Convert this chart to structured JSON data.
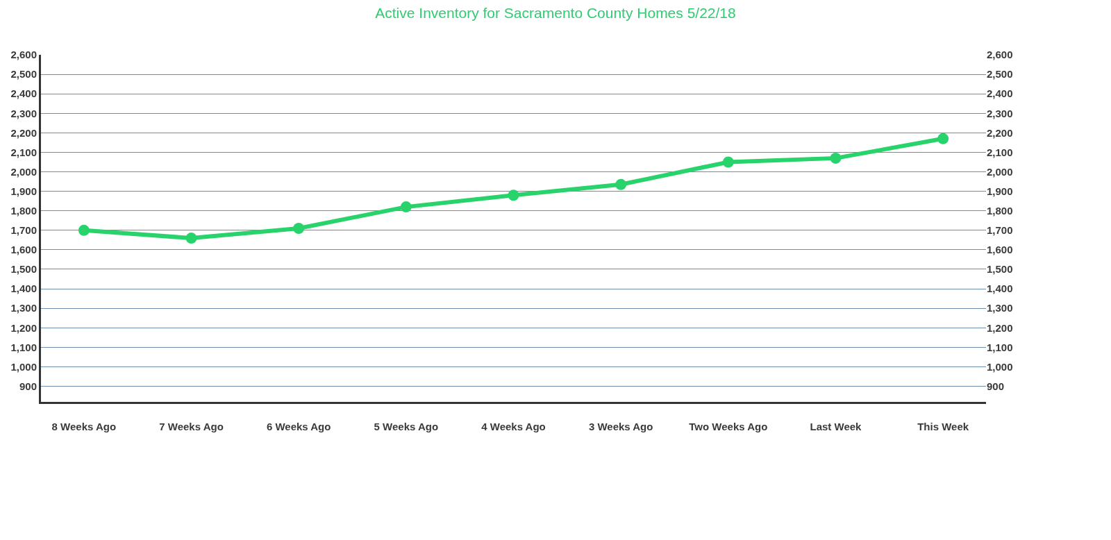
{
  "chart_data": {
    "type": "line",
    "title": "Active Inventory for Sacramento County Homes 5/22/18",
    "categories": [
      "8 Weeks Ago",
      "7 Weeks Ago",
      "6 Weeks Ago",
      "5 Weeks Ago",
      "4 Weeks Ago",
      "3 Weeks Ago",
      "Two Weeks Ago",
      "Last Week",
      "This Week"
    ],
    "series": [
      {
        "color": "#27d36a",
        "values": [
          1700,
          1660,
          1710,
          1820,
          1880,
          1935,
          2050,
          2070,
          2170
        ]
      }
    ],
    "ylim": [
      820,
      2600
    ],
    "yticks": [
      {
        "value": 900,
        "label": "900"
      },
      {
        "value": 1000,
        "label": "1,000"
      },
      {
        "value": 1100,
        "label": "1,100"
      },
      {
        "value": 1200,
        "label": "1,200"
      },
      {
        "value": 1300,
        "label": "1,300"
      },
      {
        "value": 1400,
        "label": "1,400"
      },
      {
        "value": 1500,
        "label": "1,500"
      },
      {
        "value": 1600,
        "label": "1,600"
      },
      {
        "value": 1700,
        "label": "1,700"
      },
      {
        "value": 1800,
        "label": "1,800"
      },
      {
        "value": 1900,
        "label": "1,900"
      },
      {
        "value": 2000,
        "label": "2,000"
      },
      {
        "value": 2100,
        "label": "2,100"
      },
      {
        "value": 2200,
        "label": "2,200"
      },
      {
        "value": 2300,
        "label": "2,300"
      },
      {
        "value": 2400,
        "label": "2,400"
      },
      {
        "value": 2500,
        "label": "2,500"
      },
      {
        "value": 2600,
        "label": "2,600"
      }
    ],
    "y2lim": [
      820,
      2600
    ],
    "y2ticks": [
      {
        "value": 900,
        "label": "900"
      },
      {
        "value": 1000,
        "label": "1,000"
      },
      {
        "value": 1100,
        "label": "1,100"
      },
      {
        "value": 1200,
        "label": "1,200"
      },
      {
        "value": 1300,
        "label": "1,300"
      },
      {
        "value": 1400,
        "label": "1,400"
      },
      {
        "value": 1500,
        "label": "1,500"
      },
      {
        "value": 1600,
        "label": "1,600"
      },
      {
        "value": 1700,
        "label": "1,700"
      },
      {
        "value": 1800,
        "label": "1,800"
      },
      {
        "value": 1900,
        "label": "1,900"
      },
      {
        "value": 2000,
        "label": "2,000"
      },
      {
        "value": 2100,
        "label": "2,100"
      },
      {
        "value": 2200,
        "label": "2,200"
      },
      {
        "value": 2300,
        "label": "2,300"
      },
      {
        "value": 2400,
        "label": "2,400"
      },
      {
        "value": 2500,
        "label": "2,500"
      },
      {
        "value": 2600,
        "label": "2,600"
      }
    ],
    "grid": "y",
    "marker": "circle",
    "line_style": "solid"
  }
}
